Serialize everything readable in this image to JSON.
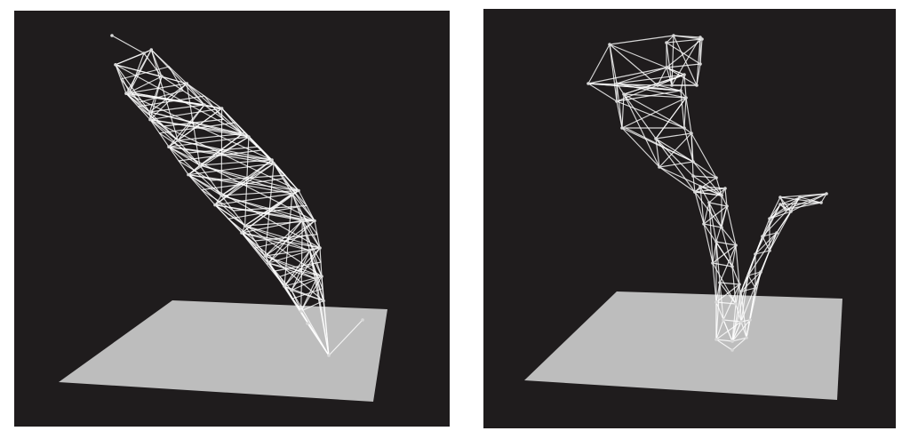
{
  "scene": {
    "panels": [
      {
        "id": "left",
        "description_label": "",
        "background": "#1f1c1d",
        "floor_color": "#bdbdbd",
        "wire_color": "#ffffff"
      },
      {
        "id": "right",
        "description_label": "",
        "background": "#1f1c1d",
        "floor_color": "#bdbdbd",
        "wire_color": "#ffffff"
      }
    ]
  }
}
